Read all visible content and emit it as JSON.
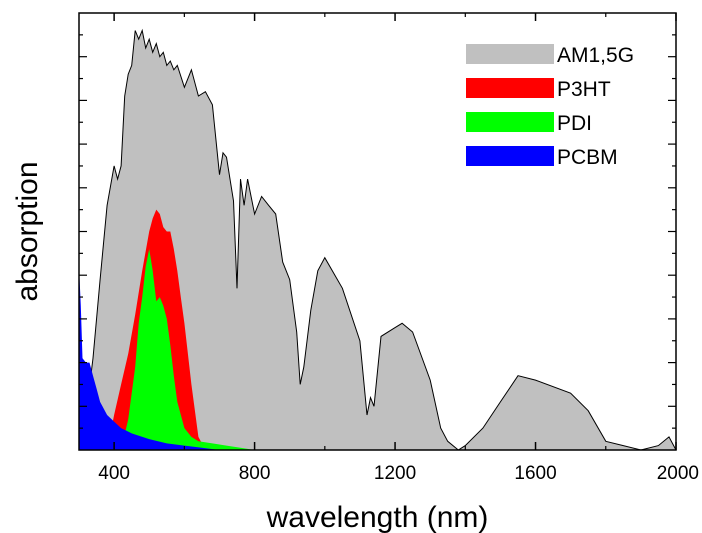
{
  "chart_data": {
    "type": "area",
    "xlabel": "wavelength (nm)",
    "ylabel": "absorption",
    "xlim": [
      300,
      2000
    ],
    "ylim": [
      0,
      1
    ],
    "x_ticks": [
      400,
      800,
      1200,
      1600,
      2000
    ],
    "x_tick_labels": [
      "400",
      "800",
      "1200",
      "1600",
      "2000"
    ],
    "legend_position": "top-right",
    "y_tick_labels": "none",
    "series": [
      {
        "name": "AM1,5G",
        "color": "#c0c0c0",
        "stroke": "#000000",
        "x": [
          300,
          320,
          340,
          360,
          380,
          400,
          410,
          420,
          430,
          440,
          450,
          460,
          470,
          480,
          490,
          500,
          510,
          520,
          530,
          540,
          550,
          560,
          570,
          580,
          600,
          620,
          640,
          660,
          680,
          700,
          710,
          720,
          740,
          750,
          760,
          770,
          780,
          800,
          820,
          840,
          860,
          880,
          900,
          920,
          930,
          940,
          960,
          980,
          1000,
          1050,
          1100,
          1120,
          1130,
          1140,
          1160,
          1200,
          1220,
          1250,
          1300,
          1330,
          1350,
          1380,
          1400,
          1450,
          1500,
          1550,
          1600,
          1700,
          1750,
          1800,
          1850,
          1900,
          1950,
          1980,
          2000
        ],
        "y": [
          0.0,
          0.08,
          0.21,
          0.39,
          0.56,
          0.65,
          0.62,
          0.65,
          0.81,
          0.86,
          0.88,
          0.96,
          0.94,
          0.96,
          0.92,
          0.94,
          0.91,
          0.93,
          0.9,
          0.91,
          0.88,
          0.89,
          0.87,
          0.88,
          0.83,
          0.87,
          0.81,
          0.82,
          0.79,
          0.63,
          0.68,
          0.67,
          0.57,
          0.37,
          0.62,
          0.56,
          0.62,
          0.54,
          0.58,
          0.56,
          0.54,
          0.43,
          0.39,
          0.27,
          0.15,
          0.19,
          0.32,
          0.41,
          0.44,
          0.37,
          0.25,
          0.08,
          0.12,
          0.1,
          0.26,
          0.28,
          0.29,
          0.27,
          0.16,
          0.05,
          0.02,
          0.0,
          0.01,
          0.05,
          0.11,
          0.17,
          0.16,
          0.13,
          0.09,
          0.02,
          0.01,
          0.0,
          0.01,
          0.03,
          0.0
        ]
      },
      {
        "name": "P3HT",
        "color": "#ff0000",
        "x": [
          380,
          400,
          420,
          440,
          460,
          480,
          500,
          510,
          520,
          530,
          540,
          550,
          560,
          570,
          580,
          590,
          600,
          620,
          640,
          660
        ],
        "y": [
          0.0,
          0.08,
          0.15,
          0.22,
          0.31,
          0.41,
          0.5,
          0.53,
          0.55,
          0.54,
          0.51,
          0.5,
          0.5,
          0.46,
          0.41,
          0.35,
          0.29,
          0.15,
          0.03,
          0.0
        ]
      },
      {
        "name": "PDI",
        "color": "#00ff00",
        "x": [
          420,
          440,
          460,
          470,
          480,
          490,
          500,
          510,
          520,
          530,
          540,
          550,
          560,
          570,
          580,
          600,
          620,
          640,
          680,
          720,
          760,
          800
        ],
        "y": [
          0.0,
          0.07,
          0.19,
          0.29,
          0.35,
          0.42,
          0.46,
          0.41,
          0.34,
          0.35,
          0.33,
          0.3,
          0.24,
          0.17,
          0.11,
          0.05,
          0.03,
          0.02,
          0.015,
          0.01,
          0.005,
          0.0
        ]
      },
      {
        "name": "PCBM",
        "color": "#0000ff",
        "x": [
          300,
          305,
          310,
          320,
          330,
          340,
          350,
          360,
          380,
          400,
          420,
          450,
          500,
          550,
          600,
          650,
          700
        ],
        "y": [
          0.42,
          0.33,
          0.21,
          0.2,
          0.2,
          0.17,
          0.14,
          0.11,
          0.08,
          0.065,
          0.05,
          0.038,
          0.025,
          0.015,
          0.01,
          0.005,
          0.0
        ]
      }
    ]
  }
}
